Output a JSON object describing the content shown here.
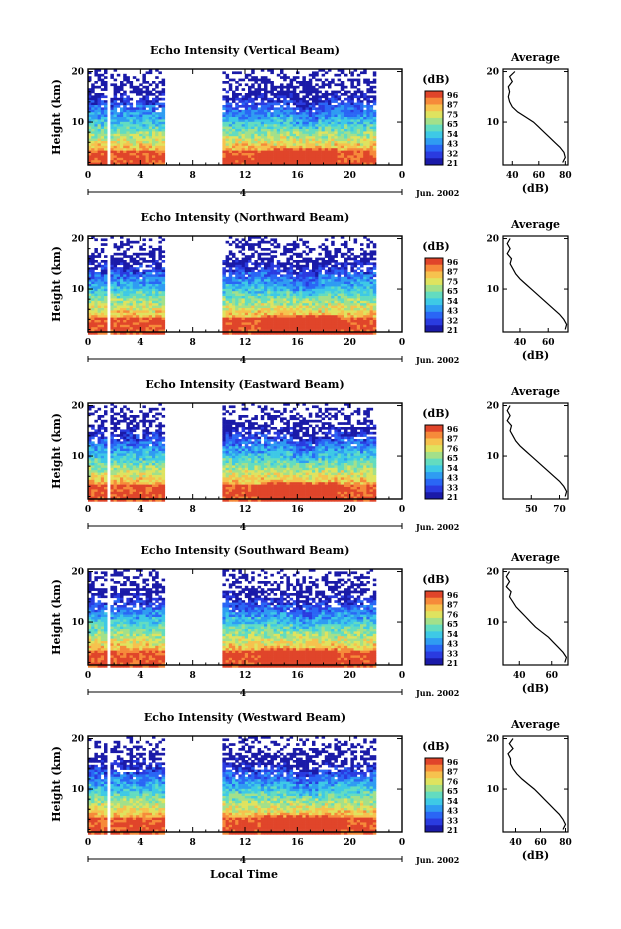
{
  "colors": {
    "colormap": [
      "#1a1aa8",
      "#2a3be0",
      "#2a66f5",
      "#2f9cf2",
      "#3ec9e6",
      "#63dcc0",
      "#a3e08a",
      "#dfe35f",
      "#f6c24e",
      "#f68a3a",
      "#e0452a"
    ],
    "axis": "#000000",
    "avg_line": "#000000"
  },
  "figure": {
    "xlabel": "Local Time",
    "date_label": "Jun. 2002",
    "day_label": "4",
    "colorbar_unit": "(dB)",
    "avg_title": "Average",
    "avg_xlabel": "(dB)"
  },
  "chart_data": [
    {
      "type": "heatmap",
      "title": "Echo Intensity (Vertical Beam)",
      "ylabel": "Height (km)",
      "x_ticks": [
        "0",
        "4",
        "8",
        "12",
        "16",
        "20",
        "0"
      ],
      "y_ticks": [
        "10",
        "20"
      ],
      "x_range_hours": [
        0,
        24
      ],
      "ylim_km": [
        1.5,
        20.5
      ],
      "data_gaps_hours": [
        [
          1.3,
          1.7
        ],
        [
          5.7,
          10.1
        ],
        [
          22.0,
          24.0
        ]
      ],
      "colorbar_ticks": [
        "96",
        "87",
        "75",
        "65",
        "54",
        "43",
        "32",
        "21"
      ],
      "colorbar_range_db": [
        21,
        96
      ],
      "average_profile": {
        "title": "Average",
        "xlabel": "(dB)",
        "x_ticks": [
          "40",
          "60",
          "80"
        ],
        "xlim": [
          33,
          82
        ],
        "y_ticks": [
          "10",
          "20"
        ],
        "height_km": [
          2,
          3,
          4,
          5,
          6,
          7,
          8,
          9,
          10,
          11,
          12,
          13,
          14,
          15,
          16,
          17,
          18,
          19,
          20
        ],
        "db": [
          78,
          80,
          79,
          76,
          72,
          68,
          64,
          60,
          56,
          50,
          44,
          40,
          38,
          37,
          38,
          37,
          40,
          38,
          42
        ]
      }
    },
    {
      "type": "heatmap",
      "title": "Echo Intensity (Northward Beam)",
      "ylabel": "Height (km)",
      "x_ticks": [
        "0",
        "4",
        "8",
        "12",
        "16",
        "20",
        "0"
      ],
      "y_ticks": [
        "10",
        "20"
      ],
      "x_range_hours": [
        0,
        24
      ],
      "ylim_km": [
        1.5,
        20.5
      ],
      "data_gaps_hours": [
        [
          1.3,
          1.7
        ],
        [
          5.7,
          10.1
        ],
        [
          22.0,
          24.0
        ]
      ],
      "colorbar_ticks": [
        "96",
        "87",
        "75",
        "65",
        "54",
        "43",
        "32",
        "21"
      ],
      "colorbar_range_db": [
        21,
        96
      ],
      "average_profile": {
        "title": "Average",
        "xlabel": "(dB)",
        "x_ticks": [
          "40",
          "60"
        ],
        "xlim": [
          28,
          74
        ],
        "y_ticks": [
          "10",
          "20"
        ],
        "height_km": [
          2,
          3,
          4,
          5,
          6,
          7,
          8,
          9,
          10,
          11,
          12,
          13,
          14,
          15,
          16,
          17,
          18,
          19,
          20
        ],
        "db": [
          72,
          73,
          71,
          68,
          64,
          60,
          56,
          52,
          48,
          44,
          40,
          37,
          35,
          33,
          34,
          31,
          33,
          31,
          33
        ]
      }
    },
    {
      "type": "heatmap",
      "title": "Echo Intensity (Eastward Beam)",
      "ylabel": "Height (km)",
      "x_ticks": [
        "0",
        "4",
        "8",
        "12",
        "16",
        "20",
        "0"
      ],
      "y_ticks": [
        "10",
        "20"
      ],
      "x_range_hours": [
        0,
        24
      ],
      "ylim_km": [
        1.5,
        20.5
      ],
      "data_gaps_hours": [
        [
          1.3,
          1.7
        ],
        [
          5.7,
          10.1
        ],
        [
          22.0,
          24.0
        ]
      ],
      "colorbar_ticks": [
        "96",
        "87",
        "76",
        "65",
        "54",
        "43",
        "33",
        "21"
      ],
      "colorbar_range_db": [
        21,
        96
      ],
      "average_profile": {
        "title": "Average",
        "xlabel": "",
        "x_ticks": [
          "50",
          "70"
        ],
        "xlim": [
          30,
          76
        ],
        "y_ticks": [
          "10",
          "20"
        ],
        "height_km": [
          2,
          3,
          4,
          5,
          6,
          7,
          8,
          9,
          10,
          11,
          12,
          13,
          14,
          15,
          16,
          17,
          18,
          19,
          20
        ],
        "db": [
          74,
          75,
          73,
          70,
          66,
          62,
          58,
          54,
          50,
          46,
          42,
          39,
          37,
          35,
          36,
          33,
          35,
          33,
          35
        ]
      }
    },
    {
      "type": "heatmap",
      "title": "Echo Intensity (Southward Beam)",
      "ylabel": "Height (km)",
      "x_ticks": [
        "0",
        "4",
        "8",
        "12",
        "16",
        "20",
        "0"
      ],
      "y_ticks": [
        "10",
        "20"
      ],
      "x_range_hours": [
        0,
        24
      ],
      "ylim_km": [
        1.5,
        20.5
      ],
      "data_gaps_hours": [
        [
          1.3,
          1.7
        ],
        [
          5.7,
          10.1
        ],
        [
          22.0,
          24.0
        ]
      ],
      "colorbar_ticks": [
        "96",
        "87",
        "76",
        "65",
        "54",
        "43",
        "33",
        "21"
      ],
      "colorbar_range_db": [
        21,
        96
      ],
      "average_profile": {
        "title": "Average",
        "xlabel": "(dB)",
        "x_ticks": [
          "40",
          "60"
        ],
        "xlim": [
          30,
          70
        ],
        "y_ticks": [
          "10",
          "20"
        ],
        "height_km": [
          2,
          3,
          4,
          5,
          6,
          7,
          8,
          9,
          10,
          11,
          12,
          13,
          14,
          15,
          16,
          17,
          18,
          19,
          20
        ],
        "db": [
          68,
          69,
          67,
          64,
          61,
          58,
          54,
          50,
          47,
          44,
          41,
          38,
          36,
          34,
          35,
          32,
          34,
          32,
          34
        ]
      }
    },
    {
      "type": "heatmap",
      "title": "Echo Intensity (Westward Beam)",
      "ylabel": "Height (km)",
      "x_ticks": [
        "0",
        "4",
        "8",
        "12",
        "16",
        "20",
        "0"
      ],
      "y_ticks": [
        "10",
        "20"
      ],
      "x_range_hours": [
        0,
        24
      ],
      "ylim_km": [
        1.5,
        20.5
      ],
      "data_gaps_hours": [
        [
          1.3,
          1.7
        ],
        [
          5.7,
          10.1
        ],
        [
          22.0,
          24.0
        ]
      ],
      "colorbar_ticks": [
        "96",
        "87",
        "76",
        "65",
        "54",
        "43",
        "33",
        "21"
      ],
      "colorbar_range_db": [
        21,
        96
      ],
      "average_profile": {
        "title": "Average",
        "xlabel": "(dB)",
        "x_ticks": [
          "40",
          "60",
          "80"
        ],
        "xlim": [
          30,
          82
        ],
        "y_ticks": [
          "10",
          "20"
        ],
        "height_km": [
          2,
          3,
          4,
          5,
          6,
          7,
          8,
          9,
          10,
          11,
          12,
          13,
          14,
          15,
          16,
          17,
          18,
          19,
          20
        ],
        "db": [
          78,
          80,
          78,
          75,
          71,
          67,
          63,
          59,
          55,
          50,
          45,
          41,
          38,
          36,
          36,
          34,
          38,
          35,
          38
        ]
      }
    }
  ]
}
